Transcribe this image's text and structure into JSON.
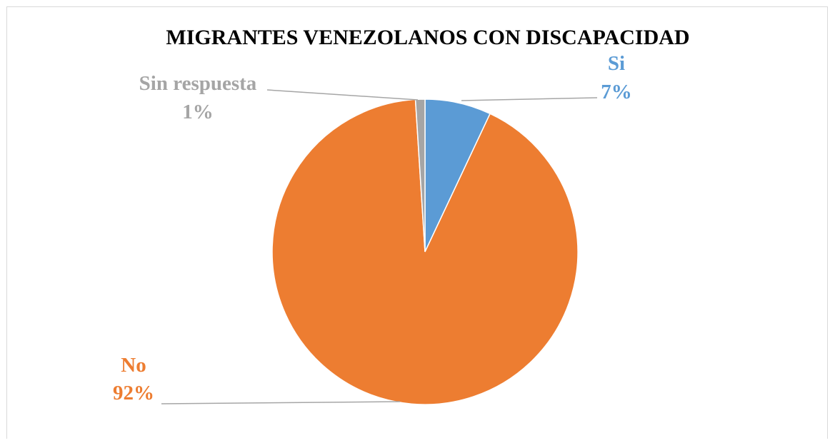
{
  "chart_data": {
    "type": "pie",
    "title": "MIGRANTES VENEZOLANOS CON DISCAPACIDAD",
    "slices": [
      {
        "name": "Si",
        "value": 7,
        "label": "7%",
        "color": "#5b9bd5"
      },
      {
        "name": "No",
        "value": 92,
        "label": "92%",
        "color": "#ed7d31"
      },
      {
        "name": "Sin respuesta",
        "value": 1,
        "label": "1%",
        "color": "#a5a5a5"
      }
    ],
    "legend": "none",
    "data_labels": "outside-with-leader-lines"
  }
}
